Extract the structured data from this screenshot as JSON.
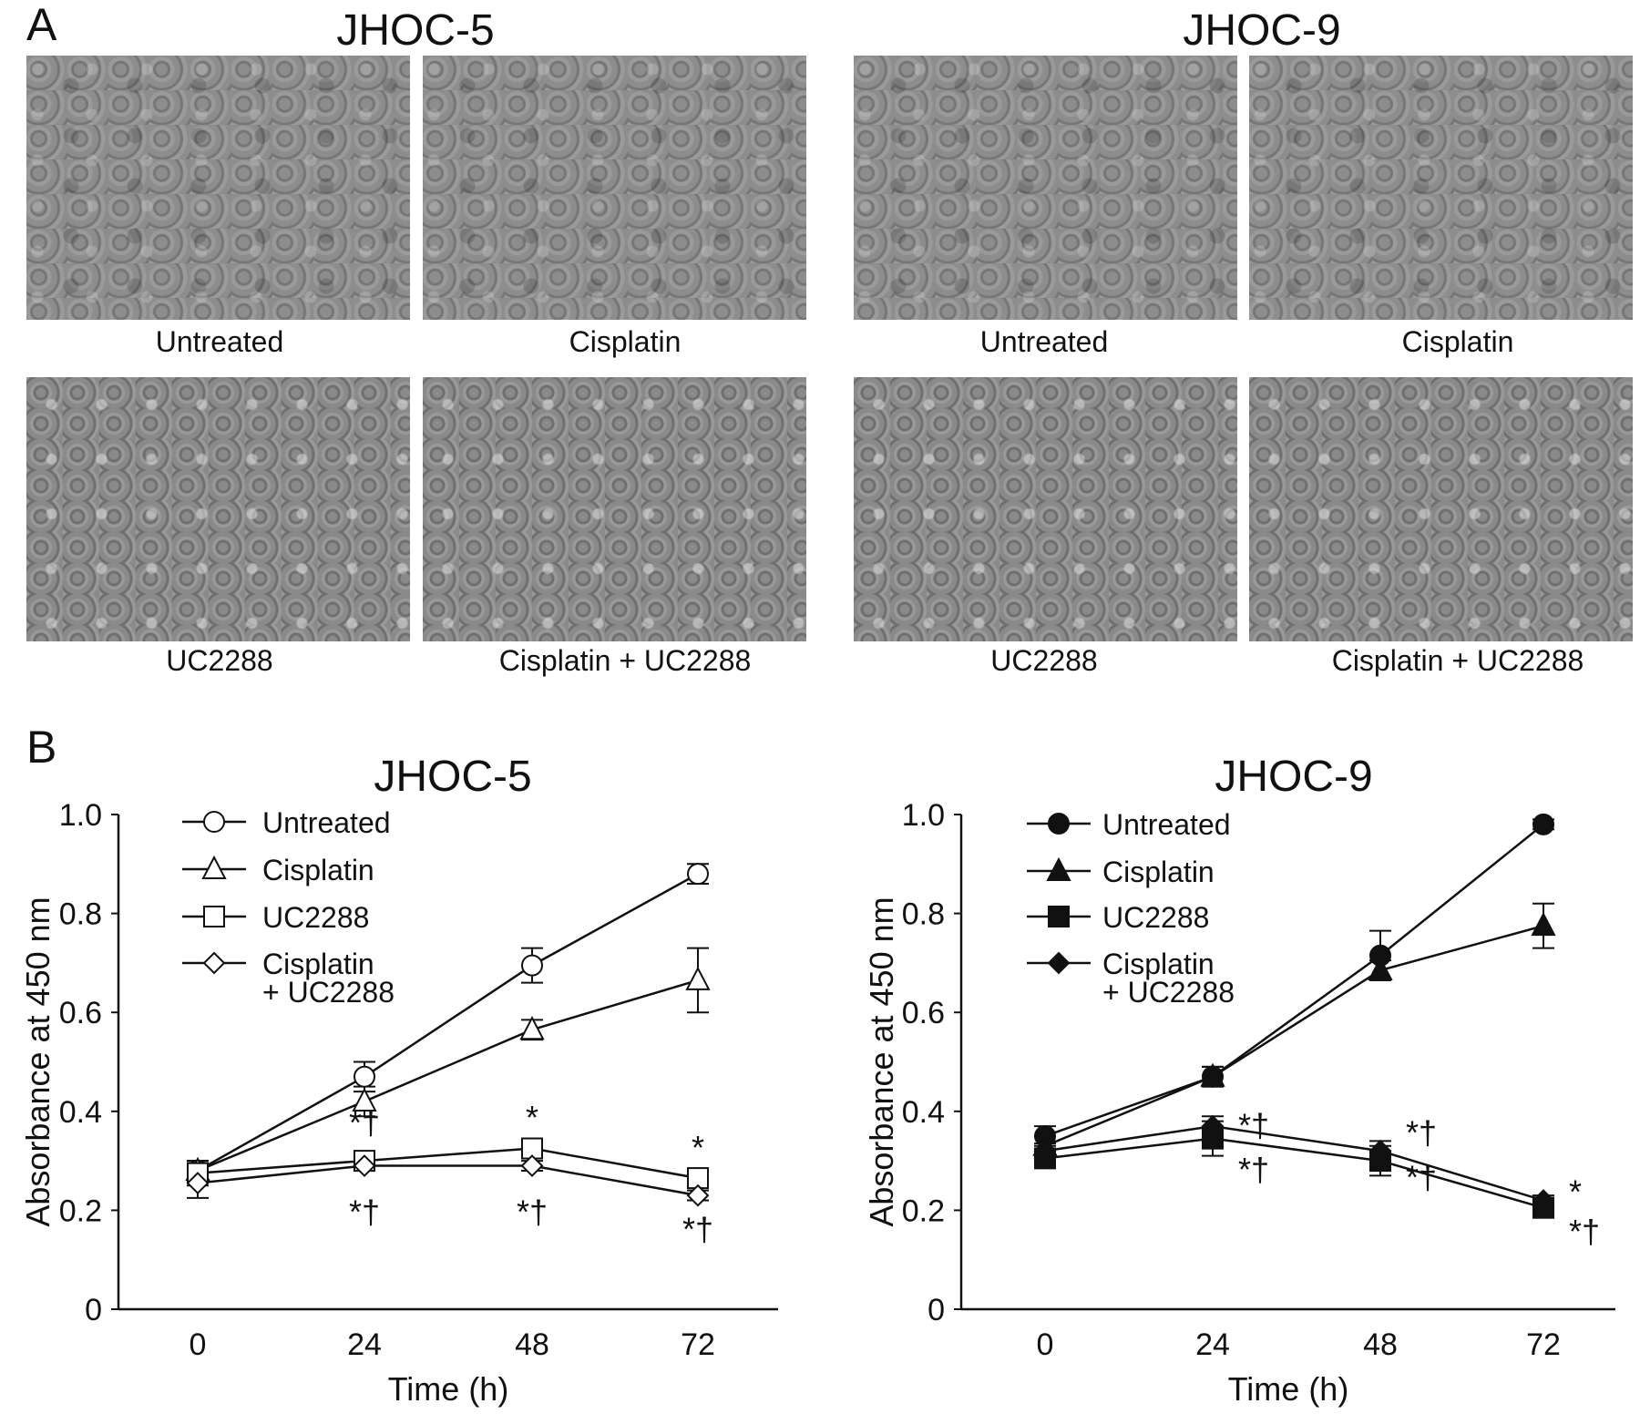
{
  "panel_a": {
    "letter": "A",
    "groups": [
      {
        "title": "JHOC-5",
        "images": [
          {
            "label": "Untreated"
          },
          {
            "label": "Cisplatin"
          },
          {
            "label": "UC2288"
          },
          {
            "label": "Cisplatin + UC2288"
          }
        ]
      },
      {
        "title": "JHOC-9",
        "images": [
          {
            "label": "Untreated"
          },
          {
            "label": "Cisplatin"
          },
          {
            "label": "UC2288"
          },
          {
            "label": "Cisplatin + UC2288"
          }
        ]
      }
    ]
  },
  "panel_b": {
    "letter": "B"
  },
  "chart_data": [
    {
      "type": "line",
      "title": "JHOC-5",
      "xlabel": "Time (h)",
      "ylabel": "Absorbance at 450 nm",
      "x": [
        0,
        24,
        48,
        72
      ],
      "xticks": [
        "0",
        "24",
        "48",
        "72"
      ],
      "yticks": [
        "0",
        "0.2",
        "0.4",
        "0.6",
        "0.8",
        "1.0"
      ],
      "ylim": [
        0,
        1.0
      ],
      "grid": false,
      "legend_placement": "top-left",
      "marker_fill": "open",
      "series": [
        {
          "name": "Untreated",
          "marker": "circle",
          "values": [
            0.28,
            0.47,
            0.695,
            0.88
          ],
          "error": [
            0.02,
            0.03,
            0.035,
            0.02
          ]
        },
        {
          "name": "Cisplatin",
          "marker": "triangle",
          "values": [
            0.28,
            0.42,
            0.565,
            0.665
          ],
          "error": [
            0.02,
            0.03,
            0.02,
            0.065
          ]
        },
        {
          "name": "UC2288",
          "marker": "square",
          "values": [
            0.275,
            0.3,
            0.325,
            0.265
          ],
          "error": [
            0.025,
            0.01,
            0.015,
            0.015
          ]
        },
        {
          "name": "Cisplatin\n+ UC2288",
          "name_lines": [
            "Cisplatin",
            "+ UC2288"
          ],
          "marker": "diamond",
          "values": [
            0.255,
            0.29,
            0.29,
            0.23
          ],
          "error": [
            0.03,
            0.01,
            0.01,
            0.01
          ]
        }
      ],
      "annotations": [
        {
          "x": 24,
          "y": 0.38,
          "text": "*†"
        },
        {
          "x": 24,
          "y": 0.2,
          "text": "*†"
        },
        {
          "x": 48,
          "y": 0.39,
          "text": "*"
        },
        {
          "x": 48,
          "y": 0.2,
          "text": "*†"
        },
        {
          "x": 72,
          "y": 0.33,
          "text": "*"
        },
        {
          "x": 72,
          "y": 0.165,
          "text": "*†"
        }
      ]
    },
    {
      "type": "line",
      "title": "JHOC-9",
      "xlabel": "Time (h)",
      "ylabel": "Absorbance at 450 nm",
      "x": [
        0,
        24,
        48,
        72
      ],
      "xticks": [
        "0",
        "24",
        "48",
        "72"
      ],
      "yticks": [
        "0",
        "0.2",
        "0.4",
        "0.6",
        "0.8",
        "1.0"
      ],
      "ylim": [
        0,
        1.0
      ],
      "grid": false,
      "legend_placement": "top-left",
      "marker_fill": "filled",
      "series": [
        {
          "name": "Untreated",
          "marker": "circle",
          "values": [
            0.35,
            0.47,
            0.715,
            0.98
          ],
          "error": [
            0.02,
            0.02,
            0.05,
            0.01
          ]
        },
        {
          "name": "Cisplatin",
          "marker": "triangle",
          "values": [
            0.33,
            0.47,
            0.685,
            0.775
          ],
          "error": [
            0.02,
            0.02,
            0.02,
            0.045
          ]
        },
        {
          "name": "UC2288",
          "marker": "square",
          "values": [
            0.305,
            0.345,
            0.3,
            0.205
          ],
          "error": [
            0.015,
            0.035,
            0.03,
            0.01
          ]
        },
        {
          "name": "Cisplatin\n+ UC2288",
          "name_lines": [
            "Cisplatin",
            "+ UC2288"
          ],
          "marker": "diamond",
          "values": [
            0.32,
            0.37,
            0.32,
            0.22
          ],
          "error": [
            0.015,
            0.02,
            0.02,
            0.01
          ]
        }
      ],
      "annotations": [
        {
          "x": 24,
          "y": 0.375,
          "text": "*†",
          "side": "right"
        },
        {
          "x": 24,
          "y": 0.285,
          "text": "*†",
          "side": "right"
        },
        {
          "x": 48,
          "y": 0.36,
          "text": "*†",
          "side": "right"
        },
        {
          "x": 48,
          "y": 0.27,
          "text": "*†",
          "side": "right"
        },
        {
          "x": 72,
          "y": 0.24,
          "text": "*",
          "side": "right"
        },
        {
          "x": 72,
          "y": 0.16,
          "text": "*†",
          "side": "right"
        }
      ]
    }
  ]
}
